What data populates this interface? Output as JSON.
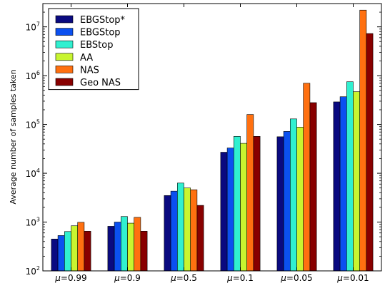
{
  "chart_data": {
    "type": "bar",
    "ylabel": "Average number of samples taken",
    "yscale": "log",
    "ylim": [
      100,
      30000000
    ],
    "yticks": [
      {
        "value": 100,
        "base": "10",
        "exp": "2"
      },
      {
        "value": 1000,
        "base": "10",
        "exp": "3"
      },
      {
        "value": 10000,
        "base": "10",
        "exp": "4"
      },
      {
        "value": 100000,
        "base": "10",
        "exp": "5"
      },
      {
        "value": 1000000,
        "base": "10",
        "exp": "6"
      },
      {
        "value": 10000000,
        "base": "10",
        "exp": "7"
      }
    ],
    "categories": [
      {
        "symbol": "μ",
        "text": "=0.99"
      },
      {
        "symbol": "μ",
        "text": "=0.9"
      },
      {
        "symbol": "μ",
        "text": "=0.5"
      },
      {
        "symbol": "μ",
        "text": "=0.1"
      },
      {
        "symbol": "μ",
        "text": "=0.05"
      },
      {
        "symbol": "μ",
        "text": "=0.01"
      }
    ],
    "legend_position": "top-left",
    "grid": false,
    "series": [
      {
        "name": "EBGStop*",
        "color": "#0a0a80",
        "values": [
          450,
          820,
          3500,
          27000,
          56000,
          290000
        ]
      },
      {
        "name": "EBGStop",
        "color": "#0b50f0",
        "values": [
          530,
          1000,
          4300,
          33000,
          72000,
          370000
        ]
      },
      {
        "name": "EBStop",
        "color": "#30f0d0",
        "values": [
          640,
          1300,
          6300,
          57000,
          130000,
          750000
        ]
      },
      {
        "name": "AA",
        "color": "#c8f530",
        "values": [
          840,
          950,
          5000,
          41000,
          88000,
          470000
        ]
      },
      {
        "name": "NAS",
        "color": "#ff7010",
        "values": [
          990,
          1250,
          4600,
          160000,
          700000,
          22000000
        ]
      },
      {
        "name": "Geo NAS",
        "color": "#880000",
        "values": [
          650,
          650,
          2200,
          57000,
          280000,
          7300000
        ]
      }
    ]
  }
}
